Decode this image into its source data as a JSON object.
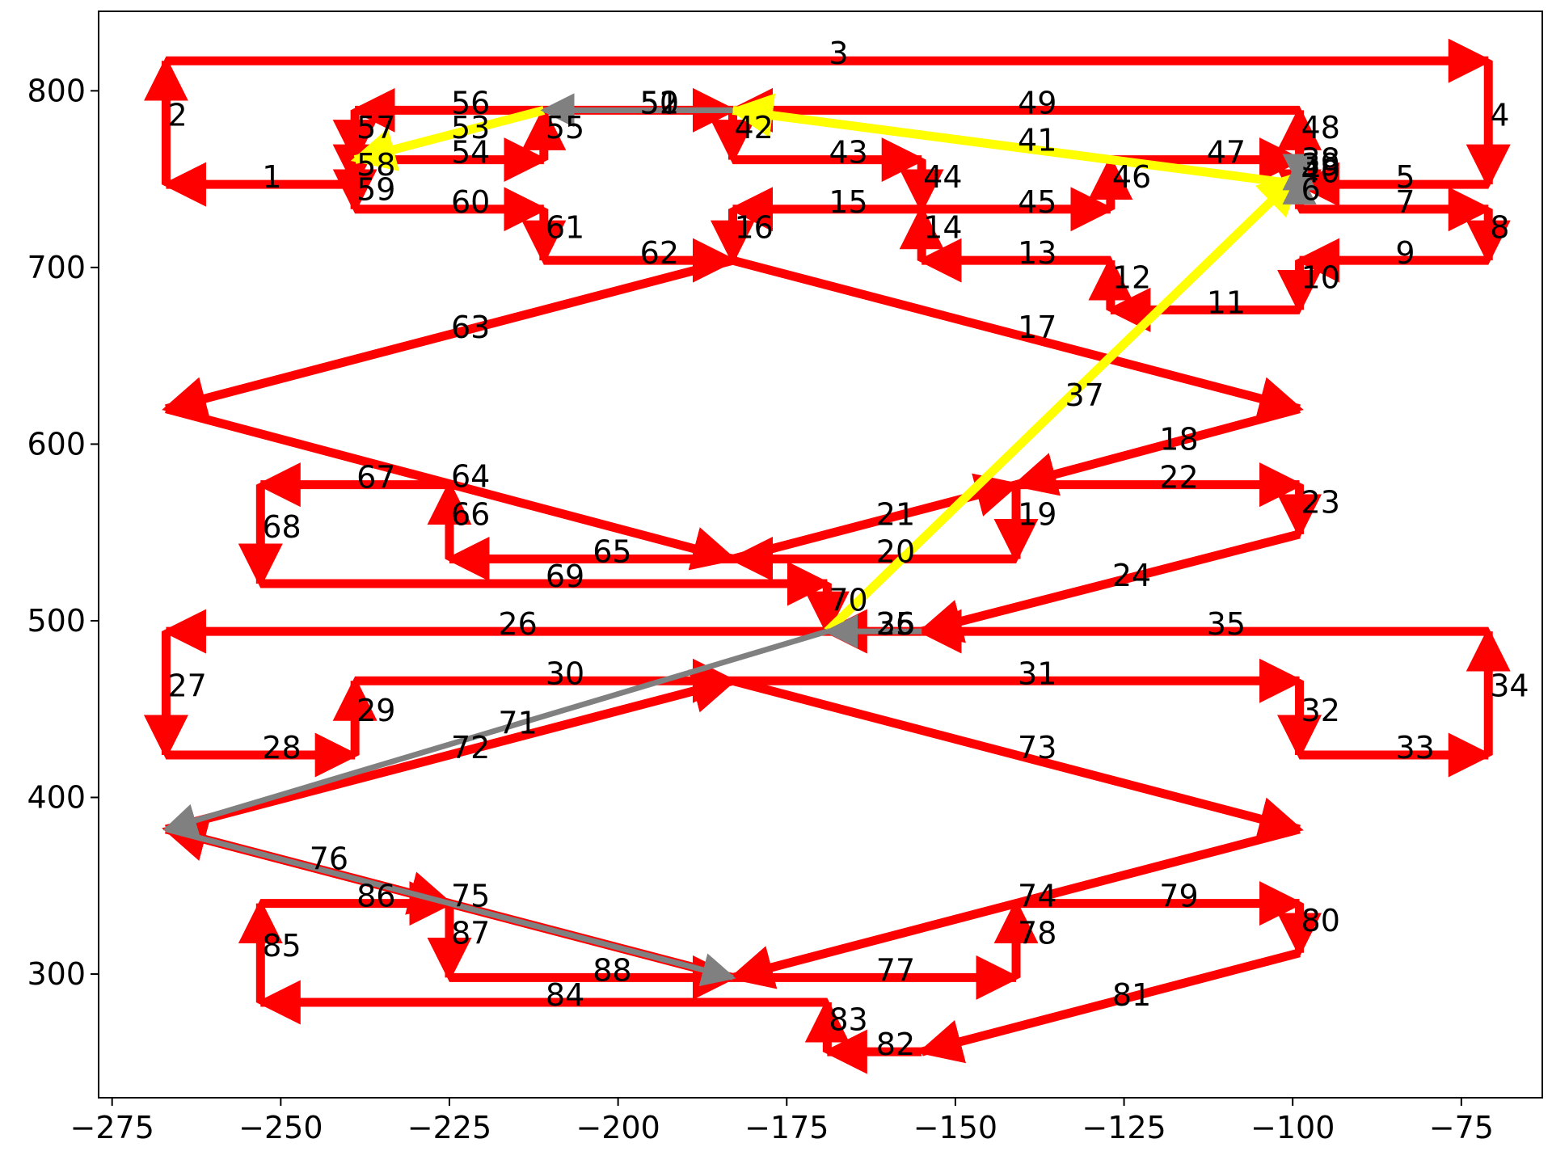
{
  "chart_data": {
    "type": "line",
    "title": "",
    "xlabel": "",
    "ylabel": "",
    "xlim": [
      -277,
      -63
    ],
    "ylim": [
      230,
      845
    ],
    "xticks": [
      -275,
      -250,
      -225,
      -200,
      -175,
      -150,
      -125,
      -100,
      -75
    ],
    "xtick_labels": [
      "−275",
      "−250",
      "−225",
      "−200",
      "−175",
      "−150",
      "−125",
      "−100",
      "−75"
    ],
    "yticks": [
      300,
      400,
      500,
      600,
      700,
      800
    ],
    "ytick_labels": [
      "300",
      "400",
      "500",
      "600",
      "700",
      "800"
    ],
    "grid": false,
    "legend": "none",
    "colors": {
      "main": "#ff0000",
      "highlight": "#ffff00",
      "secondary": "#808080"
    },
    "segments": [
      {
        "label": "1",
        "from": [
          -239,
          747
        ],
        "to": [
          -267,
          747
        ],
        "color": "#ff0000"
      },
      {
        "label": "2",
        "from": [
          -267,
          747
        ],
        "to": [
          -267,
          817
        ],
        "color": "#ff0000"
      },
      {
        "label": "3",
        "from": [
          -267,
          817
        ],
        "to": [
          -71,
          817
        ],
        "color": "#ff0000"
      },
      {
        "label": "4",
        "from": [
          -71,
          817
        ],
        "to": [
          -71,
          747
        ],
        "color": "#ff0000"
      },
      {
        "label": "5",
        "from": [
          -71,
          747
        ],
        "to": [
          -99,
          747
        ],
        "color": "#ff0000"
      },
      {
        "label": "6",
        "from": [
          -99,
          747
        ],
        "to": [
          -99,
          733
        ],
        "color": "#ff0000"
      },
      {
        "label": "7",
        "from": [
          -99,
          733
        ],
        "to": [
          -71,
          733
        ],
        "color": "#ff0000"
      },
      {
        "label": "8",
        "from": [
          -71,
          733
        ],
        "to": [
          -71,
          704
        ],
        "color": "#ff0000"
      },
      {
        "label": "9",
        "from": [
          -71,
          704
        ],
        "to": [
          -99,
          704
        ],
        "color": "#ff0000"
      },
      {
        "label": "10",
        "from": [
          -99,
          704
        ],
        "to": [
          -99,
          676
        ],
        "color": "#ff0000"
      },
      {
        "label": "11",
        "from": [
          -99,
          676
        ],
        "to": [
          -127,
          676
        ],
        "color": "#ff0000"
      },
      {
        "label": "12",
        "from": [
          -127,
          676
        ],
        "to": [
          -127,
          704
        ],
        "color": "#ff0000"
      },
      {
        "label": "13",
        "from": [
          -127,
          704
        ],
        "to": [
          -155,
          704
        ],
        "color": "#ff0000"
      },
      {
        "label": "14",
        "from": [
          -155,
          704
        ],
        "to": [
          -155,
          733
        ],
        "color": "#ff0000"
      },
      {
        "label": "15",
        "from": [
          -155,
          733
        ],
        "to": [
          -183,
          733
        ],
        "color": "#ff0000"
      },
      {
        "label": "16",
        "from": [
          -183,
          733
        ],
        "to": [
          -183,
          704
        ],
        "color": "#ff0000"
      },
      {
        "label": "17",
        "from": [
          -183,
          704
        ],
        "to": [
          -99,
          620
        ],
        "color": "#ff0000"
      },
      {
        "label": "18",
        "from": [
          -99,
          620
        ],
        "to": [
          -141,
          577
        ],
        "color": "#ff0000"
      },
      {
        "label": "19",
        "from": [
          -141,
          577
        ],
        "to": [
          -141,
          535
        ],
        "color": "#ff0000"
      },
      {
        "label": "20",
        "from": [
          -141,
          535
        ],
        "to": [
          -183,
          535
        ],
        "color": "#ff0000"
      },
      {
        "label": "21",
        "from": [
          -183,
          535
        ],
        "to": [
          -141,
          577
        ],
        "color": "#ff0000"
      },
      {
        "label": "22",
        "from": [
          -141,
          577
        ],
        "to": [
          -99,
          577
        ],
        "color": "#ff0000"
      },
      {
        "label": "23",
        "from": [
          -99,
          577
        ],
        "to": [
          -99,
          549
        ],
        "color": "#ff0000"
      },
      {
        "label": "24",
        "from": [
          -99,
          549
        ],
        "to": [
          -155,
          494
        ],
        "color": "#ff0000"
      },
      {
        "label": "25",
        "from": [
          -155,
          494
        ],
        "to": [
          -169,
          494
        ],
        "color": "#ff0000"
      },
      {
        "label": "26",
        "from": [
          -169,
          494
        ],
        "to": [
          -267,
          494
        ],
        "color": "#ff0000"
      },
      {
        "label": "27",
        "from": [
          -267,
          494
        ],
        "to": [
          -267,
          424
        ],
        "color": "#ff0000"
      },
      {
        "label": "28",
        "from": [
          -267,
          424
        ],
        "to": [
          -239,
          424
        ],
        "color": "#ff0000"
      },
      {
        "label": "29",
        "from": [
          -239,
          424
        ],
        "to": [
          -239,
          466
        ],
        "color": "#ff0000"
      },
      {
        "label": "30",
        "from": [
          -239,
          466
        ],
        "to": [
          -183,
          466
        ],
        "color": "#ff0000"
      },
      {
        "label": "31",
        "from": [
          -183,
          466
        ],
        "to": [
          -99,
          466
        ],
        "color": "#ff0000"
      },
      {
        "label": "32",
        "from": [
          -99,
          466
        ],
        "to": [
          -99,
          424
        ],
        "color": "#ff0000"
      },
      {
        "label": "33",
        "from": [
          -99,
          424
        ],
        "to": [
          -71,
          424
        ],
        "color": "#ff0000"
      },
      {
        "label": "34",
        "from": [
          -71,
          424
        ],
        "to": [
          -71,
          494
        ],
        "color": "#ff0000"
      },
      {
        "label": "35",
        "from": [
          -71,
          494
        ],
        "to": [
          -155,
          494
        ],
        "color": "#ff0000"
      },
      {
        "label": "36",
        "from": [
          -155,
          494
        ],
        "to": [
          -169,
          494
        ],
        "color": "#808080"
      },
      {
        "label": "37",
        "from": [
          -169,
          494
        ],
        "to": [
          -99,
          753
        ],
        "color": "#ffff00"
      },
      {
        "label": "38",
        "from": [
          -99,
          753
        ],
        "to": [
          -99,
          761
        ],
        "color": "#808080"
      },
      {
        "label": "39",
        "from": [
          -99,
          761
        ],
        "to": [
          -99,
          747
        ],
        "color": "#808080"
      },
      {
        "label": "40",
        "from": [
          -99,
          747
        ],
        "to": [
          -99,
          753
        ],
        "color": "#808080"
      },
      {
        "label": "41",
        "from": [
          -99,
          747
        ],
        "to": [
          -183,
          789
        ],
        "color": "#ffff00"
      },
      {
        "label": "42",
        "from": [
          -183,
          789
        ],
        "to": [
          -183,
          761
        ],
        "color": "#ff0000"
      },
      {
        "label": "43",
        "from": [
          -183,
          761
        ],
        "to": [
          -155,
          761
        ],
        "color": "#ff0000"
      },
      {
        "label": "44",
        "from": [
          -155,
          761
        ],
        "to": [
          -155,
          733
        ],
        "color": "#ff0000"
      },
      {
        "label": "45",
        "from": [
          -155,
          733
        ],
        "to": [
          -127,
          733
        ],
        "color": "#ff0000"
      },
      {
        "label": "46",
        "from": [
          -127,
          733
        ],
        "to": [
          -127,
          761
        ],
        "color": "#ff0000"
      },
      {
        "label": "47",
        "from": [
          -127,
          761
        ],
        "to": [
          -99,
          761
        ],
        "color": "#ff0000"
      },
      {
        "label": "48",
        "from": [
          -99,
          761
        ],
        "to": [
          -99,
          789
        ],
        "color": "#ff0000"
      },
      {
        "label": "49",
        "from": [
          -99,
          789
        ],
        "to": [
          -183,
          789
        ],
        "color": "#ff0000"
      },
      {
        "label": "50",
        "from": [
          -183,
          789
        ],
        "to": [
          -211,
          789
        ],
        "color": "#808080"
      },
      {
        "label": "51",
        "from": [
          -211,
          789
        ],
        "to": [
          -183,
          789
        ],
        "color": "#ff0000"
      },
      {
        "label": "52",
        "from": [
          -183,
          789
        ],
        "to": [
          -211,
          789
        ],
        "color": "#808080"
      },
      {
        "label": "53",
        "from": [
          -211,
          789
        ],
        "to": [
          -239,
          761
        ],
        "color": "#ffff00"
      },
      {
        "label": "54",
        "from": [
          -239,
          761
        ],
        "to": [
          -211,
          761
        ],
        "color": "#ff0000"
      },
      {
        "label": "55",
        "from": [
          -211,
          761
        ],
        "to": [
          -211,
          789
        ],
        "color": "#ff0000"
      },
      {
        "label": "56",
        "from": [
          -211,
          789
        ],
        "to": [
          -239,
          789
        ],
        "color": "#ff0000"
      },
      {
        "label": "57",
        "from": [
          -239,
          789
        ],
        "to": [
          -239,
          761
        ],
        "color": "#ff0000"
      },
      {
        "label": "58",
        "from": [
          -239,
          761
        ],
        "to": [
          -239,
          747
        ],
        "color": "#ff0000"
      },
      {
        "label": "59",
        "from": [
          -239,
          747
        ],
        "to": [
          -239,
          733
        ],
        "color": "#ff0000"
      },
      {
        "label": "60",
        "from": [
          -239,
          733
        ],
        "to": [
          -211,
          733
        ],
        "color": "#ff0000"
      },
      {
        "label": "61",
        "from": [
          -211,
          733
        ],
        "to": [
          -211,
          704
        ],
        "color": "#ff0000"
      },
      {
        "label": "62",
        "from": [
          -211,
          704
        ],
        "to": [
          -183,
          704
        ],
        "color": "#ff0000"
      },
      {
        "label": "63",
        "from": [
          -183,
          704
        ],
        "to": [
          -267,
          620
        ],
        "color": "#ff0000"
      },
      {
        "label": "64",
        "from": [
          -267,
          620
        ],
        "to": [
          -183,
          535
        ],
        "color": "#ff0000"
      },
      {
        "label": "65",
        "from": [
          -183,
          535
        ],
        "to": [
          -225,
          535
        ],
        "color": "#ff0000"
      },
      {
        "label": "66",
        "from": [
          -225,
          535
        ],
        "to": [
          -225,
          577
        ],
        "color": "#ff0000"
      },
      {
        "label": "67",
        "from": [
          -225,
          577
        ],
        "to": [
          -253,
          577
        ],
        "color": "#ff0000"
      },
      {
        "label": "68",
        "from": [
          -253,
          577
        ],
        "to": [
          -253,
          521
        ],
        "color": "#ff0000"
      },
      {
        "label": "69",
        "from": [
          -253,
          521
        ],
        "to": [
          -169,
          521
        ],
        "color": "#ff0000"
      },
      {
        "label": "70",
        "from": [
          -169,
          521
        ],
        "to": [
          -169,
          494
        ],
        "color": "#ff0000"
      },
      {
        "label": "71",
        "from": [
          -169,
          494
        ],
        "to": [
          -267,
          382
        ],
        "color": "#808080"
      },
      {
        "label": "72",
        "from": [
          -267,
          382
        ],
        "to": [
          -183,
          466
        ],
        "color": "#ff0000"
      },
      {
        "label": "73",
        "from": [
          -183,
          466
        ],
        "to": [
          -99,
          382
        ],
        "color": "#ff0000"
      },
      {
        "label": "74",
        "from": [
          -99,
          382
        ],
        "to": [
          -183,
          298
        ],
        "color": "#ff0000"
      },
      {
        "label": "75",
        "from": [
          -183,
          298
        ],
        "to": [
          -267,
          382
        ],
        "color": "#ff0000"
      },
      {
        "label": "76",
        "from": [
          -267,
          382
        ],
        "to": [
          -225,
          340
        ],
        "color": "#ff0000"
      },
      {
        "label": "77",
        "from": [
          -183,
          298
        ],
        "to": [
          -141,
          298
        ],
        "color": "#ff0000"
      },
      {
        "label": "78",
        "from": [
          -141,
          298
        ],
        "to": [
          -141,
          340
        ],
        "color": "#ff0000"
      },
      {
        "label": "79",
        "from": [
          -141,
          340
        ],
        "to": [
          -99,
          340
        ],
        "color": "#ff0000"
      },
      {
        "label": "80",
        "from": [
          -99,
          340
        ],
        "to": [
          -99,
          312
        ],
        "color": "#ff0000"
      },
      {
        "label": "81",
        "from": [
          -99,
          312
        ],
        "to": [
          -155,
          256
        ],
        "color": "#ff0000"
      },
      {
        "label": "82",
        "from": [
          -155,
          256
        ],
        "to": [
          -169,
          256
        ],
        "color": "#ff0000"
      },
      {
        "label": "83",
        "from": [
          -169,
          256
        ],
        "to": [
          -169,
          284
        ],
        "color": "#ff0000"
      },
      {
        "label": "84",
        "from": [
          -169,
          284
        ],
        "to": [
          -253,
          284
        ],
        "color": "#ff0000"
      },
      {
        "label": "85",
        "from": [
          -253,
          284
        ],
        "to": [
          -253,
          340
        ],
        "color": "#ff0000"
      },
      {
        "label": "86",
        "from": [
          -253,
          340
        ],
        "to": [
          -225,
          340
        ],
        "color": "#ff0000"
      },
      {
        "label": "87",
        "from": [
          -225,
          340
        ],
        "to": [
          -225,
          298
        ],
        "color": "#ff0000"
      },
      {
        "label": "88",
        "from": [
          -225,
          298
        ],
        "to": [
          -183,
          298
        ],
        "color": "#ff0000"
      },
      {
        "label": "",
        "from": [
          -267,
          382
        ],
        "to": [
          -183,
          298
        ],
        "color": "#808080"
      }
    ]
  }
}
